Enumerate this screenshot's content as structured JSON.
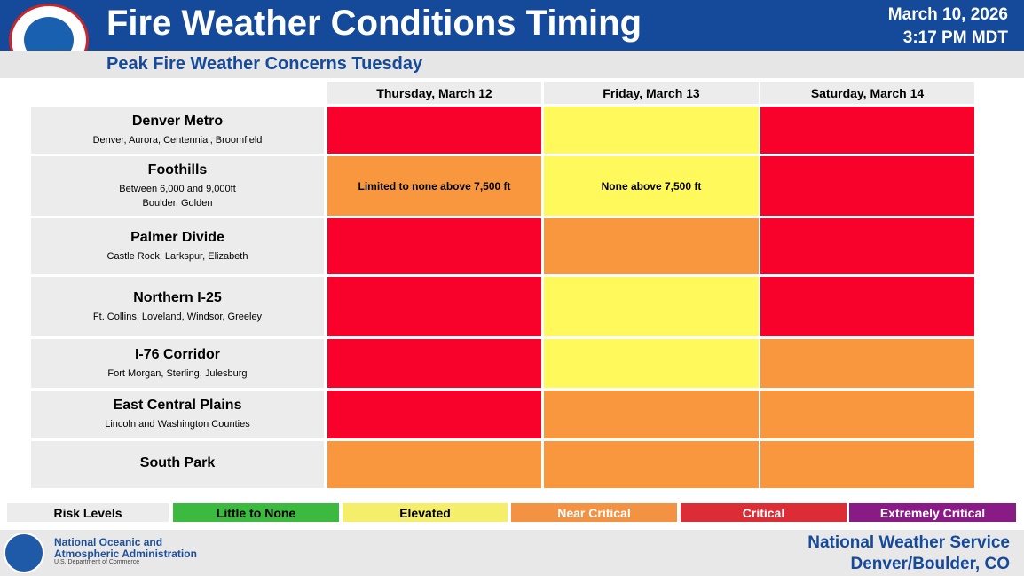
{
  "header": {
    "title": "Fire Weather Conditions Timing",
    "date": "March 10, 2026",
    "time": "3:17 PM MDT",
    "subtitle": "Peak Fire Weather Concerns Tuesday"
  },
  "table": {
    "columns": [
      "Thursday, March 12",
      "Friday, March 13",
      "Saturday, March 14"
    ],
    "rows": [
      {
        "name": "Denver Metro",
        "details": [
          "Denver, Aurora, Centennial, Broomfield"
        ],
        "cells": [
          {
            "color": "#f8012a"
          },
          {
            "color": "#fff95b"
          },
          {
            "color": "#f8012a"
          }
        ]
      },
      {
        "name": "Foothills",
        "details": [
          "Between 6,000 and 9,000ft",
          "Boulder, Golden"
        ],
        "cells": [
          {
            "color": "#f8973e",
            "text": "Limited to none above 7,500 ft"
          },
          {
            "color": "#fff95b",
            "text": "None above 7,500 ft"
          },
          {
            "color": "#f8012a"
          }
        ]
      },
      {
        "name": "Palmer Divide",
        "details": [
          "Castle Rock, Larkspur, Elizabeth"
        ],
        "cells": [
          {
            "color": "#f8012a"
          },
          {
            "color": "#f8973e"
          },
          {
            "color": "#f8012a"
          }
        ]
      },
      {
        "name": "Northern I-25",
        "details": [
          "Ft. Collins, Loveland, Windsor, Greeley"
        ],
        "cells": [
          {
            "color": "#f8012a"
          },
          {
            "color": "#fff95b"
          },
          {
            "color": "#f8012a"
          }
        ]
      },
      {
        "name": "I-76 Corridor",
        "details": [
          "Fort Morgan, Sterling, Julesburg"
        ],
        "cells": [
          {
            "color": "#f8012a"
          },
          {
            "color": "#fff95b"
          },
          {
            "color": "#f8973e"
          }
        ]
      },
      {
        "name": "East Central Plains",
        "details": [
          "Lincoln and Washington Counties"
        ],
        "cells": [
          {
            "color": "#f8012a"
          },
          {
            "color": "#f8973e"
          },
          {
            "color": "#f8973e"
          }
        ]
      },
      {
        "name": "South Park",
        "details": [],
        "cells": [
          {
            "color": "#f8973e"
          },
          {
            "color": "#f8973e"
          },
          {
            "color": "#f8973e"
          }
        ]
      }
    ]
  },
  "legend": {
    "title": "Risk Levels",
    "levels": [
      {
        "label": "Little to None",
        "color": "#3cba3f"
      },
      {
        "label": "Elevated",
        "color": "#f4ee6a"
      },
      {
        "label": "Near Critical",
        "color": "#f39243"
      },
      {
        "label": "Critical",
        "color": "#dc2c36"
      },
      {
        "label": "Extremely Critical",
        "color": "#8a1a86"
      }
    ]
  },
  "footer": {
    "agency_lines": [
      "National Oceanic and",
      "Atmospheric Administration",
      "U.S. Department of Commerce"
    ],
    "office_lines": [
      "National Weather Service",
      "Denver/Boulder, CO"
    ]
  }
}
